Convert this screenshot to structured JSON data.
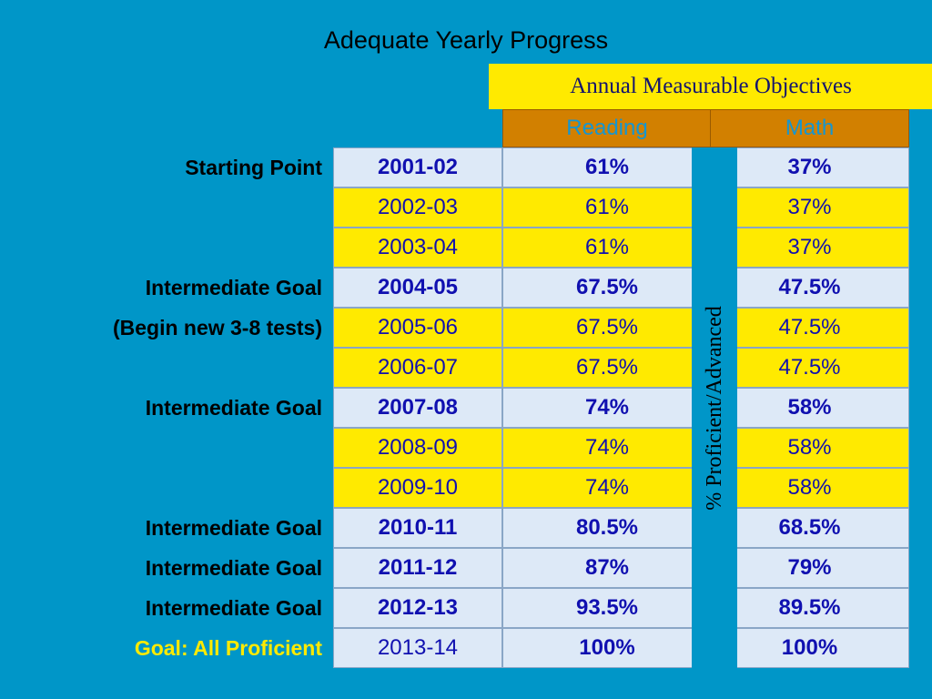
{
  "title": "Adequate Yearly Progress",
  "amo_header": "Annual Measurable Objectives",
  "columns": {
    "reading": "Reading",
    "math": "Math"
  },
  "vertical_label": "% Proficient/Advanced",
  "rows": [
    {
      "label": "Starting Point",
      "year": "2001-02",
      "reading": "61%",
      "math": "37%",
      "bold": true,
      "bg": "light"
    },
    {
      "label": "",
      "year": "2002-03",
      "reading": "61%",
      "math": "37%",
      "bold": false,
      "bg": "yellow"
    },
    {
      "label": "",
      "year": "2003-04",
      "reading": "61%",
      "math": "37%",
      "bold": false,
      "bg": "yellow"
    },
    {
      "label": "Intermediate Goal",
      "year": "2004-05",
      "reading": "67.5%",
      "math": "47.5%",
      "bold": true,
      "bg": "light"
    },
    {
      "label": "(Begin new 3-8 tests)",
      "year": "2005-06",
      "reading": "67.5%",
      "math": "47.5%",
      "bold": false,
      "bg": "yellow"
    },
    {
      "label": "",
      "year": "2006-07",
      "reading": "67.5%",
      "math": "47.5%",
      "bold": false,
      "bg": "yellow"
    },
    {
      "label": "Intermediate Goal",
      "year": "2007-08",
      "reading": "74%",
      "math": "58%",
      "bold": true,
      "bg": "light"
    },
    {
      "label": "",
      "year": "2008-09",
      "reading": "74%",
      "math": "58%",
      "bold": false,
      "bg": "yellow"
    },
    {
      "label": "",
      "year": "2009-10",
      "reading": "74%",
      "math": "58%",
      "bold": false,
      "bg": "yellow"
    },
    {
      "label": "Intermediate Goal",
      "year": "2010-11",
      "reading": "80.5%",
      "math": "68.5%",
      "bold": true,
      "bg": "light"
    },
    {
      "label": "Intermediate Goal",
      "year": "2011-12",
      "reading": "87%",
      "math": "79%",
      "bold": true,
      "bg": "light"
    },
    {
      "label": "Intermediate Goal",
      "year": "2012-13",
      "reading": "93.5%",
      "math": "89.5%",
      "bold": true,
      "bg": "light"
    },
    {
      "label": "Goal: All Proficient",
      "year": "2013-14",
      "reading": "100%",
      "math": "100%",
      "bold": true,
      "bg": "light",
      "year_bold": false,
      "label_color": "gold"
    }
  ]
}
